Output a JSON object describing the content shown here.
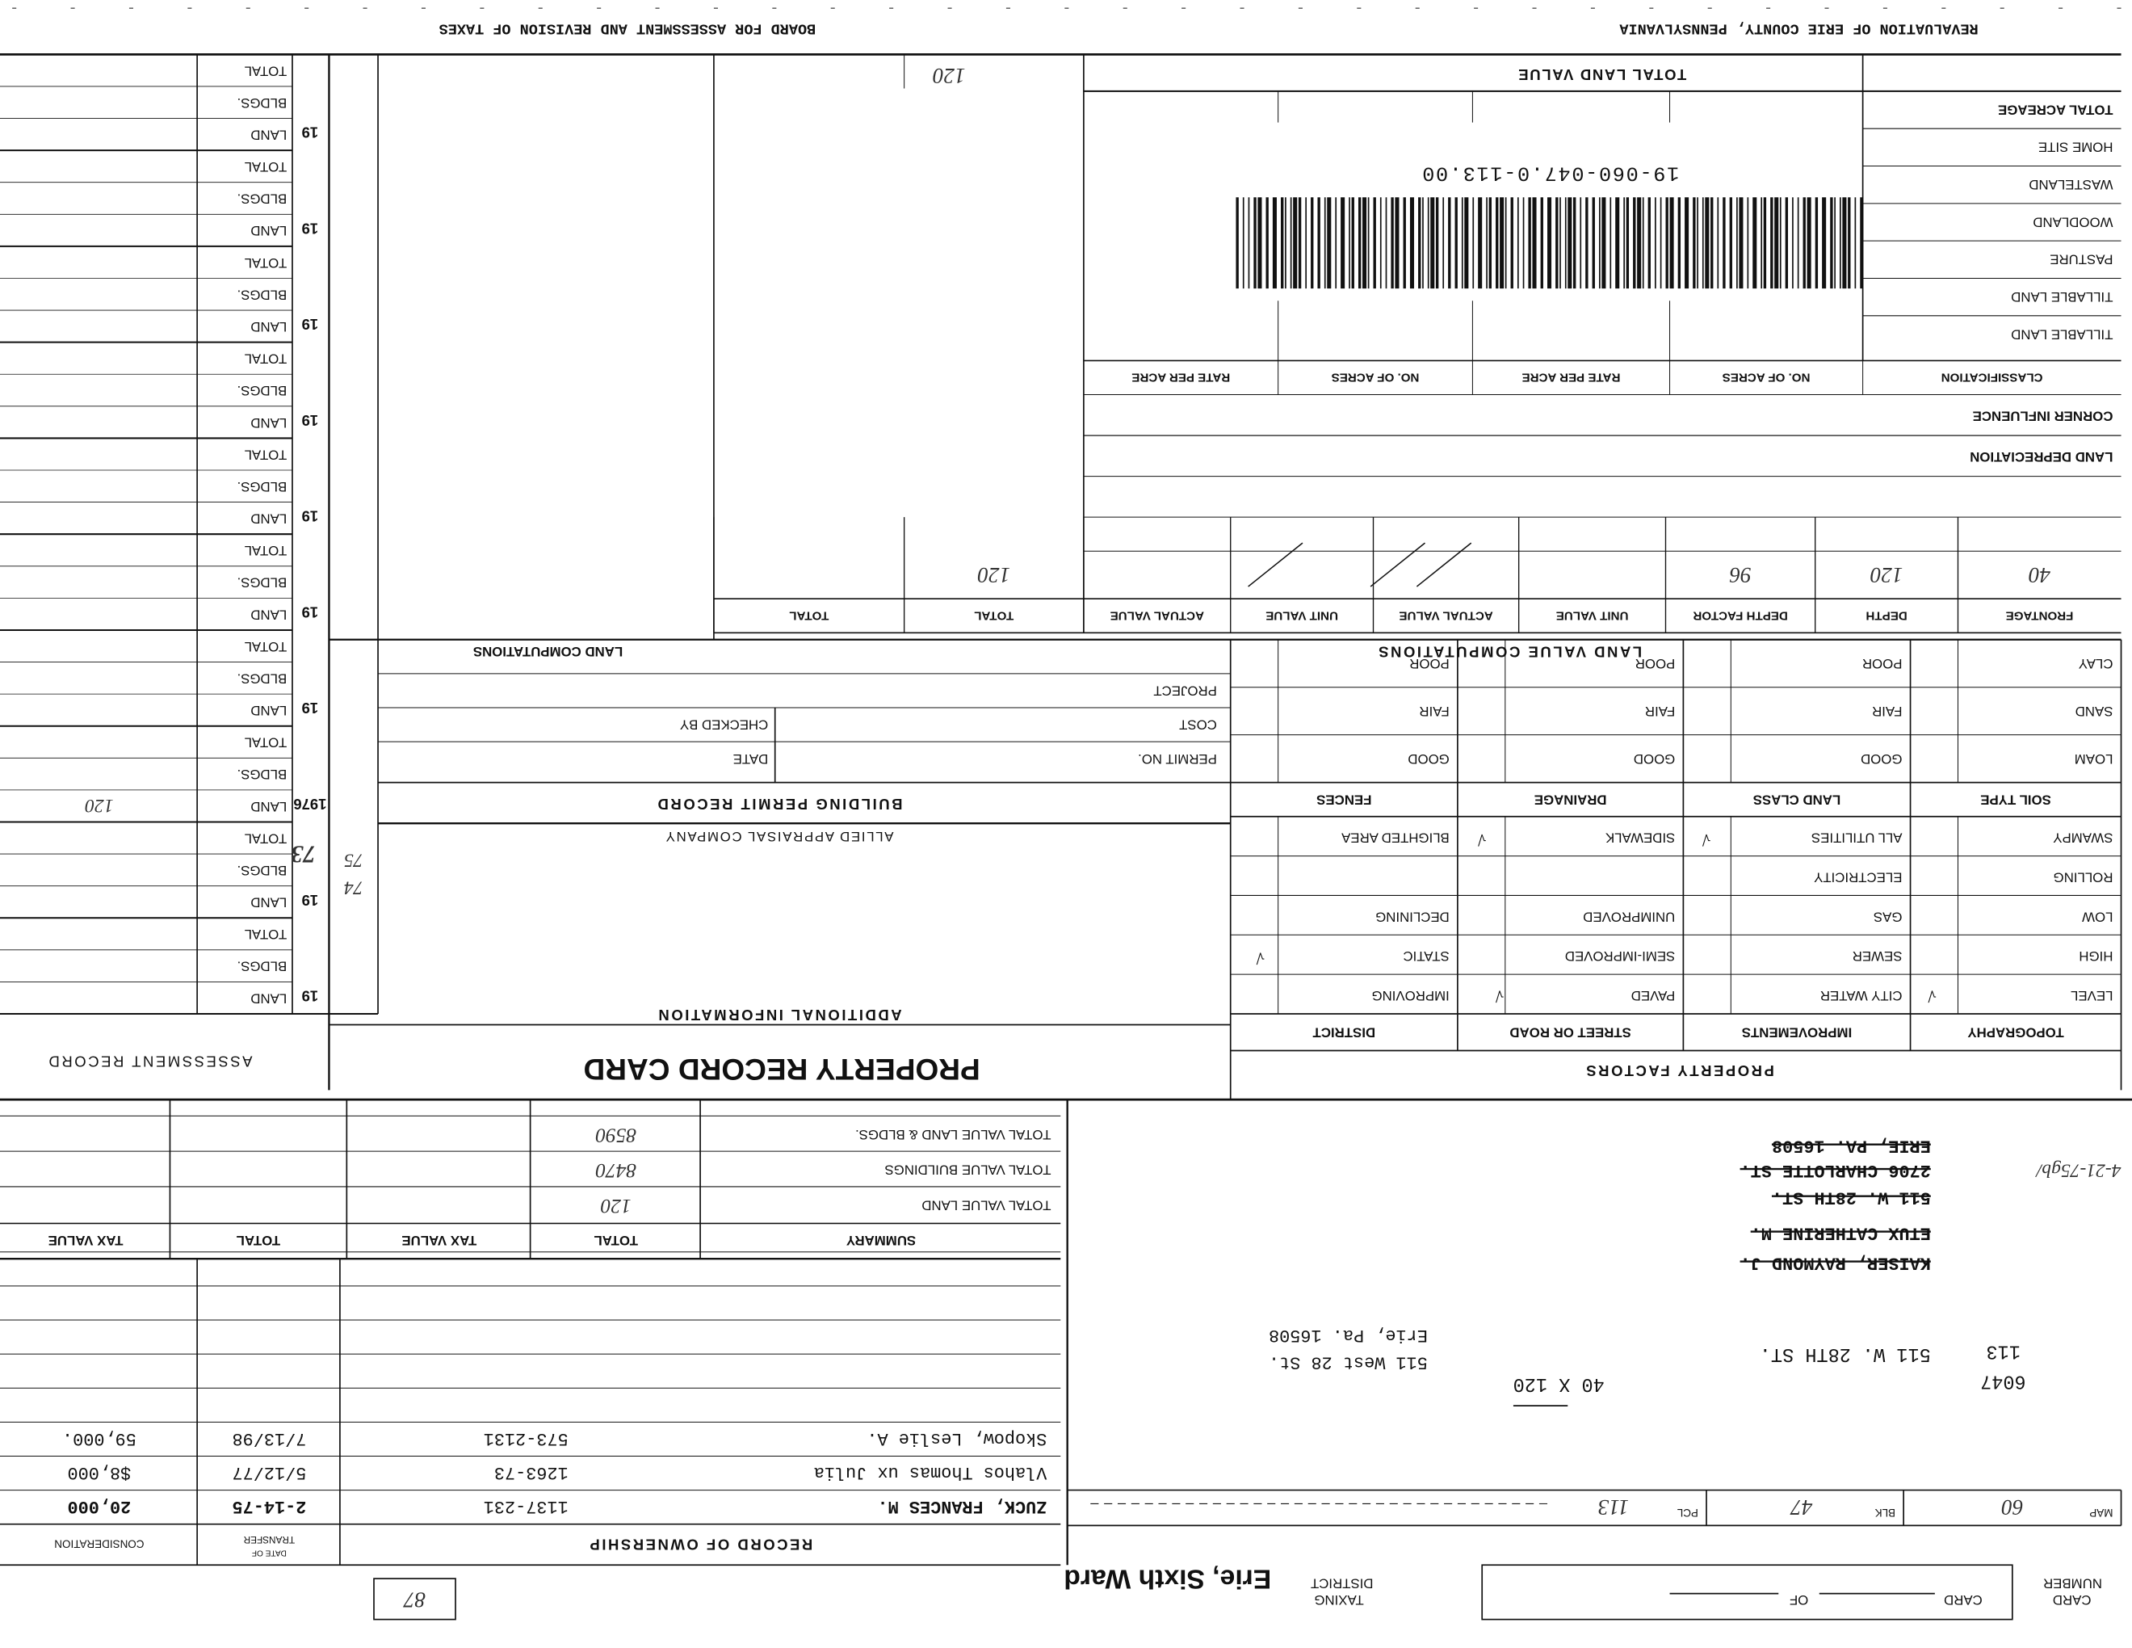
{
  "header": {
    "left_title": "REVALUATION OF ERIE COUNTY, PENNSYLVANIA",
    "right_title": "BOARD FOR ASSESSMENT AND REVISION OF TAXES"
  },
  "card": {
    "card_number_label": [
      "CARD",
      "NUMBER"
    ],
    "card_label": "CARD",
    "of_label": "OF",
    "taxing_district_label": [
      "TAXING",
      "DISTRICT"
    ],
    "taxing_district": "Erie, Sixth Ward",
    "box_number": "87"
  },
  "parcel": {
    "map_label": "MAP",
    "map": "60",
    "blk_label": "BLK",
    "blk": "47",
    "pcl_label": "PCL",
    "pcl": "113"
  },
  "location": {
    "numbers": [
      "6047",
      "113"
    ],
    "address": "511 W. 28TH ST.",
    "dimensions": "40 X 120",
    "mailing": [
      "511 West 28 St.",
      "Erie, Pa. 16508"
    ]
  },
  "former_owner": {
    "lines": [
      "KAISER, RAYMOND J.",
      "ETUX CATHERINE M.",
      "511 W. 28TH ST.",
      "2706 CHARLOTTE ST.",
      "ERIE, PA. 16508"
    ],
    "note": "4-21-75gb/"
  },
  "ownership": {
    "title": "RECORD OF OWNERSHIP",
    "date_header": [
      "DATE OF",
      "TRANSFER"
    ],
    "consideration_header": "CONSIDERATION",
    "rows": [
      [
        "ZUCK, FRANCES M.",
        "1137-231",
        "2-14-75",
        "20,000"
      ],
      [
        "Vlahos Thomas ux Julia",
        "1263-73",
        "5/12/77",
        "$8,000"
      ],
      [
        "Skopow, Leslie A.",
        "573-2131",
        "7/13/98",
        "59,000."
      ]
    ]
  },
  "summary": {
    "headers": [
      "SUMMARY",
      "TOTAL",
      "TAX VALUE",
      "TOTAL",
      "TAX VALUE"
    ],
    "rows": [
      [
        "TOTAL VALUE LAND",
        "120"
      ],
      [
        "TOTAL VALUE BUILDINGS",
        "8470"
      ],
      [
        "TOTAL VALUE LAND & BLDGS.",
        "8590"
      ]
    ]
  },
  "card_title": "PROPERTY RECORD CARD",
  "additional_info": {
    "title": "ADDITIONAL INFORMATION",
    "company": "ALLIED APPRAISAL COMPANY"
  },
  "building_permit": {
    "title": "BUILDING PERMIT RECORD",
    "left_fields": [
      "PERMIT NO.",
      "COST",
      "PROJECT"
    ],
    "right_fields": [
      "DATE",
      "CHECKED BY"
    ]
  },
  "property_factors": {
    "title": "PROPERTY FACTORS",
    "headers": [
      "TOPOGRAPHY",
      "IMPROVEMENTS",
      "STREET OR ROAD",
      "DISTRICT"
    ],
    "rows": [
      [
        "LEVEL",
        "CITY WATER",
        "PAVED",
        "IMPROVING"
      ],
      [
        "HIGH",
        "SEWER",
        "SEMI-IMPROVED",
        "STATIC"
      ],
      [
        "LOW",
        "GAS",
        "UNIMPROVED",
        "DECLINING"
      ],
      [
        "ROLLING",
        "ELECTRICITY",
        null,
        null
      ],
      [
        "SWAMPY",
        "ALL UTILITIES",
        "SIDEWALK",
        "BLIGHTED AREA"
      ]
    ],
    "soil_headers": [
      "SOIL TYPE",
      "LAND CLASS",
      "DRAINAGE",
      "FENCES"
    ],
    "soil_rows": [
      [
        "LOAM",
        "GOOD",
        "GOOD",
        "GOOD"
      ],
      [
        "SAND",
        "FAIR",
        "FAIR",
        "FAIR"
      ],
      [
        "CLAY",
        "POOR",
        "POOR",
        "POOR"
      ]
    ]
  },
  "land_value": {
    "title": "LAND VALUE COMPUTATIONS",
    "headers": [
      "FRONTAGE",
      "DEPTH",
      "DEPTH FACTOR",
      "UNIT VALUE",
      "ACTUAL VALUE",
      "UNIT VALUE",
      "ACTUAL VALUE",
      "TOTAL",
      "TOTAL"
    ],
    "entries": [
      "40",
      "120",
      "96",
      null,
      null,
      null,
      null,
      "120",
      null
    ],
    "row_labels": [
      "LAND DEPRECIATION",
      "CORNER INFLUENCE"
    ],
    "acreage_headers": [
      "CLASSIFICATION",
      "NO. OF ACRES",
      "RATE PER ACRE",
      "NO. OF ACRES",
      "RATE PER ACRE"
    ],
    "classes": [
      "TILLABLE LAND",
      "TILLABLE LAND",
      "PASTURE",
      "WOODLAND",
      "WASTELAND",
      "HOME SITE",
      "TOTAL ACREAGE"
    ],
    "total_land_value_label": "TOTAL LAND VALUE",
    "total_land_value": "120",
    "parcel_id": "19-060-047.0-113.00"
  },
  "land_computations_title": "LAND COMPUTATIONS",
  "assessment": {
    "title": "ASSESSMENT RECORD",
    "row_labels": [
      "LAND",
      "BLDGS.",
      "TOTAL"
    ],
    "years": [
      "19",
      "19",
      "1976",
      "19",
      "19",
      "19",
      "19",
      "19",
      "19",
      "19"
    ],
    "year_note": "73",
    "strip_note": [
      "74",
      "75"
    ],
    "land_note": "120"
  }
}
